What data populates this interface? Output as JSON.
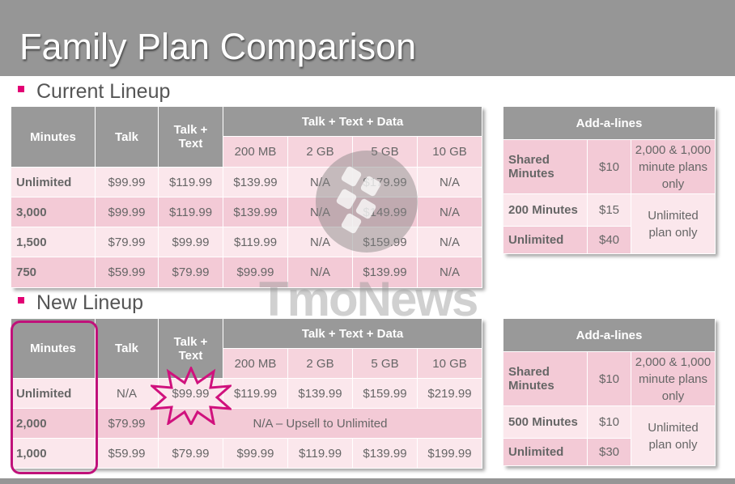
{
  "title": "Family Plan Comparison",
  "sections": {
    "current": "Current Lineup",
    "new": "New Lineup"
  },
  "current": {
    "headers": {
      "minutes": "Minutes",
      "talk": "Talk",
      "talk_text": "Talk + Text",
      "ttd": "Talk + Text + Data"
    },
    "data_sub": [
      "200 MB",
      "2 GB",
      "5 GB",
      "10 GB"
    ],
    "rows": [
      [
        "Unlimited",
        "$99.99",
        "$119.99",
        "$139.99",
        "N/A",
        "$179.99",
        "N/A"
      ],
      [
        "3,000",
        "$99.99",
        "$119.99",
        "$139.99",
        "N/A",
        "$149.99",
        "N/A"
      ],
      [
        "1,500",
        "$79.99",
        "$99.99",
        "$119.99",
        "N/A",
        "$159.99",
        "N/A"
      ],
      [
        "750",
        "$59.99",
        "$79.99",
        "$99.99",
        "N/A",
        "$139.99",
        "N/A"
      ]
    ]
  },
  "current_addon": {
    "header": "Add-a-lines",
    "rows": [
      {
        "label": "Shared Minutes",
        "price": "$10",
        "note": "2,000 & 1,000 minute plans only"
      },
      {
        "label": "200 Minutes",
        "price": "$15",
        "note": "Unlimited plan only"
      },
      {
        "label": "Unlimited",
        "price": "$40"
      }
    ]
  },
  "new": {
    "headers": {
      "minutes": "Minutes",
      "talk": "Talk",
      "talk_text": "Talk + Text",
      "ttd": "Talk + Text + Data"
    },
    "data_sub": [
      "200 MB",
      "2 GB",
      "5 GB",
      "10 GB"
    ],
    "rows": [
      [
        "Unlimited",
        "N/A",
        "$99.99",
        "$119.99",
        "$139.99",
        "$159.99",
        "$219.99"
      ],
      [
        "2,000",
        "$79.99"
      ],
      [
        "1,000",
        "$59.99",
        "$79.99",
        "$99.99",
        "$119.99",
        "$139.99",
        "$199.99"
      ]
    ],
    "upsell": "N/A – Upsell to Unlimited"
  },
  "new_addon": {
    "header": "Add-a-lines",
    "rows": [
      {
        "label": "Shared Minutes",
        "price": "$10",
        "note": "2,000 & 1,000 minute plans only"
      },
      {
        "label": "500 Minutes",
        "price": "$10",
        "note": "Unlimited plan only"
      },
      {
        "label": "Unlimited",
        "price": "$30"
      }
    ]
  },
  "watermark": "TmoNews",
  "colors": {
    "accent": "#e20074",
    "header_gray": "#999999",
    "row_dark": "#f3cad6",
    "row_light": "#fbe7ec"
  }
}
